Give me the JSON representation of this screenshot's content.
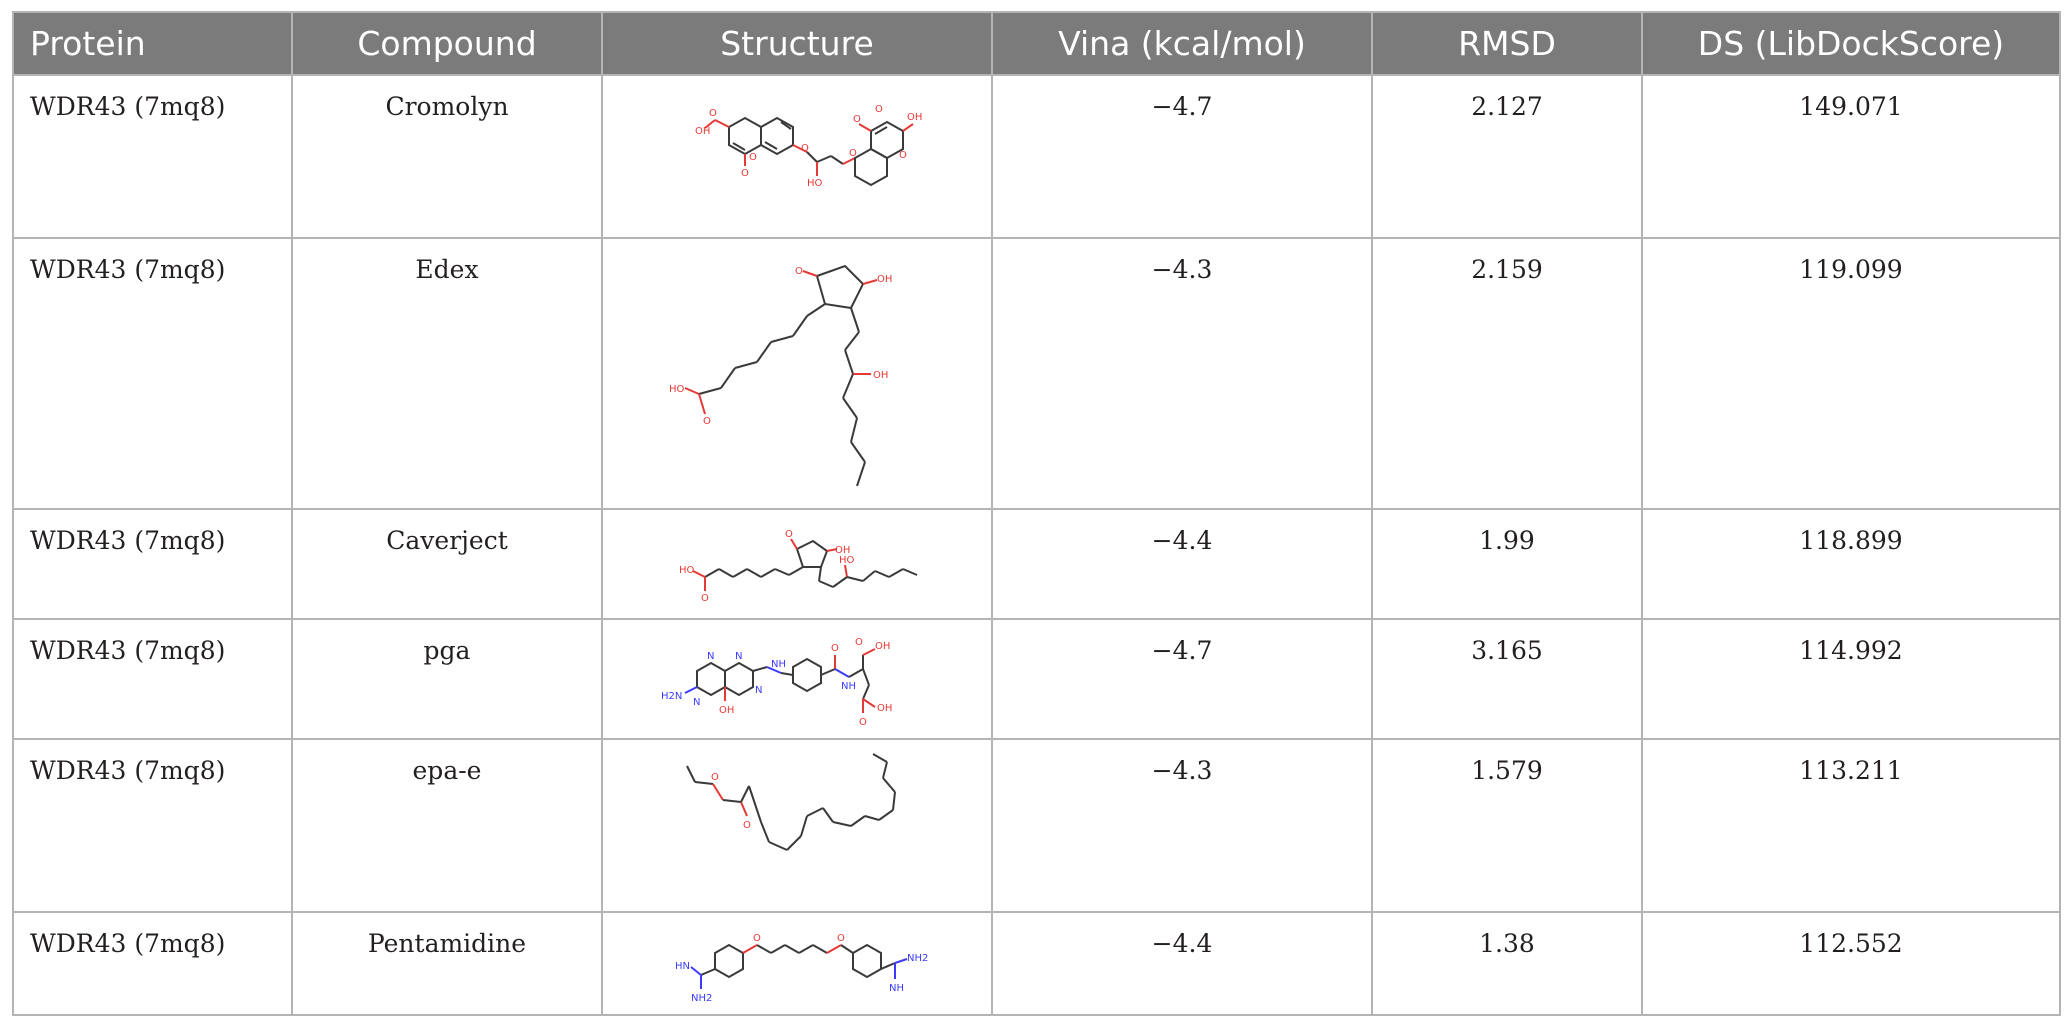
{
  "table": {
    "headers": {
      "protein": "Protein",
      "compound": "Compound",
      "structure": "Structure",
      "vina": "Vina (kcal/mol)",
      "rmsd": "RMSD",
      "ds": "DS (LibDockScore)"
    },
    "rows": [
      {
        "protein": "WDR43 (7mq8)",
        "compound": "Cromolyn",
        "vina": "−4.7",
        "rmsd": "2.127",
        "ds": "149.071",
        "structure_labels": [
          "OH",
          "O",
          "O",
          "O",
          "O",
          "HO",
          "O",
          "OH",
          "O",
          "O",
          "O"
        ]
      },
      {
        "protein": "WDR43 (7mq8)",
        "compound": "Edex",
        "vina": "−4.3",
        "rmsd": "2.159",
        "ds": "119.099",
        "structure_labels": [
          "O",
          "OH",
          "HO",
          "O",
          "OH"
        ]
      },
      {
        "protein": "WDR43 (7mq8)",
        "compound": "Caverject",
        "vina": "−4.4",
        "rmsd": "1.99",
        "ds": "118.899",
        "structure_labels": [
          "O",
          "OH",
          "HO",
          "O",
          "HO"
        ]
      },
      {
        "protein": "WDR43 (7mq8)",
        "compound": "pga",
        "vina": "−4.7",
        "rmsd": "3.165",
        "ds": "114.992",
        "structure_labels": [
          "N",
          "N",
          "H2N",
          "N",
          "N",
          "OH",
          "NH",
          "O",
          "NH",
          "OH",
          "O",
          "OH",
          "O"
        ]
      },
      {
        "protein": "WDR43 (7mq8)",
        "compound": "epa-e",
        "vina": "−4.3",
        "rmsd": "1.579",
        "ds": "113.211",
        "structure_labels": [
          "O",
          "O"
        ]
      },
      {
        "protein": "WDR43 (7mq8)",
        "compound": "Pentamidine",
        "vina": "−4.4",
        "rmsd": "1.38",
        "ds": "112.552",
        "structure_labels": [
          "HN",
          "NH2",
          "O",
          "O",
          "NH2",
          "NH"
        ]
      }
    ]
  }
}
